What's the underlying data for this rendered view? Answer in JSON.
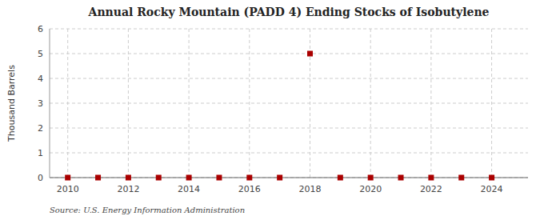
{
  "chart_data": {
    "type": "scatter",
    "title": "Annual Rocky Mountain (PADD 4) Ending Stocks of Isobutylene",
    "y_label": "Thousand Barrels",
    "annotations": [
      "Source: U.S. Energy Information Administration"
    ],
    "x": [
      2010,
      2011,
      2012,
      2013,
      2014,
      2015,
      2016,
      2017,
      2018,
      2019,
      2020,
      2021,
      2022,
      2023,
      2024
    ],
    "values": [
      0,
      0,
      0,
      0,
      0,
      0,
      0,
      0,
      5,
      0,
      0,
      0,
      0,
      0,
      0
    ],
    "color": "#aa0000",
    "marker": "square",
    "xlim": [
      2009.4,
      2025.2
    ],
    "xticks": [
      2010,
      2012,
      2014,
      2016,
      2018,
      2020,
      2022,
      2024
    ],
    "ylim": [
      0,
      6
    ],
    "yticks": [
      0,
      1,
      2,
      3,
      4,
      5,
      6
    ],
    "grid": true
  }
}
